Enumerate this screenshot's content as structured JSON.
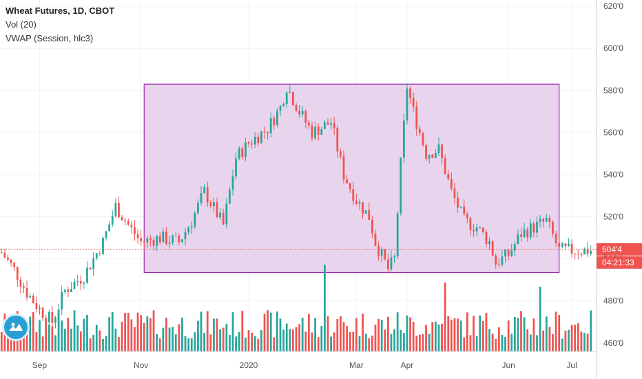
{
  "legend": {
    "title": "Wheat Futures, 1D, CBOT",
    "indicator_vol": "Vol (20)",
    "indicator_vwap": "VWAP (Session, hlc3)"
  },
  "price_badge": {
    "value": "504'4",
    "countdown": "04:21:33"
  },
  "colors": {
    "up": "#26a69a",
    "down": "#ef5350",
    "box_fill": "#e5cdea",
    "box_stroke": "#9c27b0",
    "grid": "#f0f3fa",
    "axis_text": "#555555",
    "price_line": "#ef5350"
  },
  "chart_data": {
    "type": "candlestick",
    "title": "Wheat Futures, 1D, CBOT",
    "y_ticks": [
      "460'0",
      "480'0",
      "500'0",
      "520'0",
      "540'0",
      "560'0",
      "580'0",
      "600'0",
      "620'0"
    ],
    "y_tick_values": [
      460,
      480,
      500,
      520,
      540,
      560,
      580,
      600,
      620
    ],
    "x_ticks": [
      "Sep",
      "Nov",
      "2020",
      "Mar",
      "Apr",
      "Jun",
      "Jul"
    ],
    "x_tick_index": [
      12,
      44,
      78,
      112,
      128,
      160,
      180
    ],
    "ylim": [
      456,
      623
    ],
    "n_bars": 187,
    "last_price": 504.5,
    "range_box": {
      "start_index": 45,
      "end_index": 176,
      "high": 583,
      "low": 493.5
    },
    "price_path": [
      [
        0,
        503
      ],
      [
        4,
        495
      ],
      [
        8,
        484
      ],
      [
        12,
        476
      ],
      [
        16,
        470
      ],
      [
        20,
        485
      ],
      [
        26,
        492
      ],
      [
        32,
        508
      ],
      [
        36,
        525
      ],
      [
        40,
        516
      ],
      [
        44,
        508
      ],
      [
        50,
        510
      ],
      [
        56,
        508
      ],
      [
        60,
        518
      ],
      [
        64,
        532
      ],
      [
        70,
        516
      ],
      [
        74,
        548
      ],
      [
        78,
        555
      ],
      [
        84,
        562
      ],
      [
        88,
        572
      ],
      [
        90,
        582
      ],
      [
        94,
        570
      ],
      [
        98,
        560
      ],
      [
        104,
        565
      ],
      [
        108,
        540
      ],
      [
        112,
        528
      ],
      [
        116,
        520
      ],
      [
        118,
        508
      ],
      [
        122,
        495
      ],
      [
        124,
        500
      ],
      [
        126,
        545
      ],
      [
        128,
        582
      ],
      [
        130,
        570
      ],
      [
        134,
        550
      ],
      [
        138,
        552
      ],
      [
        142,
        532
      ],
      [
        146,
        518
      ],
      [
        150,
        515
      ],
      [
        154,
        508
      ],
      [
        156,
        498
      ],
      [
        160,
        502
      ],
      [
        164,
        512
      ],
      [
        168,
        515
      ],
      [
        172,
        518
      ],
      [
        176,
        504
      ]
    ],
    "volume_spikes": [
      [
        102,
        86
      ],
      [
        140,
        60
      ],
      [
        170,
        54
      ]
    ]
  }
}
